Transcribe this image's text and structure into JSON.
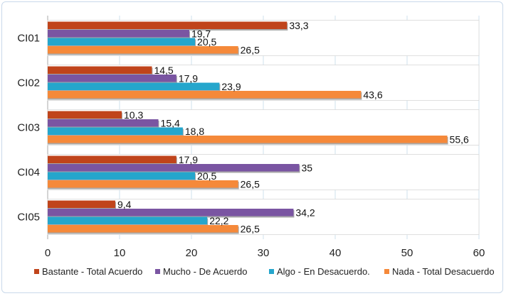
{
  "chart_data": {
    "type": "bar",
    "orientation": "horizontal",
    "categories": [
      "CI01",
      "CI02",
      "CI03",
      "CI04",
      "CI05"
    ],
    "series": [
      {
        "name": "Bastante - Total Acuerdo",
        "color": "#c0441b",
        "values": [
          33.3,
          14.5,
          10.3,
          17.9,
          9.4
        ],
        "labels": [
          "33,3",
          "14,5",
          "10,3",
          "17,9",
          "9,4"
        ]
      },
      {
        "name": "Mucho - De Acuerdo",
        "color": "#7a55a2",
        "values": [
          19.7,
          17.9,
          15.4,
          35,
          34.2
        ],
        "labels": [
          "19,7",
          "17,9",
          "15,4",
          "35",
          "34,2"
        ]
      },
      {
        "name": "Algo - En Desacuerdo.",
        "color": "#25a6cc",
        "values": [
          20.5,
          23.9,
          18.8,
          20.5,
          22.2
        ],
        "labels": [
          "20,5",
          "23,9",
          "18,8",
          "20,5",
          "22,2"
        ]
      },
      {
        "name": "Nada - Total Desacuerdo",
        "color": "#f5893a",
        "values": [
          26.5,
          43.6,
          55.6,
          26.5,
          26.5
        ],
        "labels": [
          "26,5",
          "43,6",
          "55,6",
          "26,5",
          "26,5"
        ]
      }
    ],
    "xlim": [
      0,
      60
    ],
    "xticks": [
      "0",
      "10",
      "20",
      "30",
      "40",
      "50",
      "60"
    ],
    "grid": true,
    "legend_position": "bottom"
  }
}
